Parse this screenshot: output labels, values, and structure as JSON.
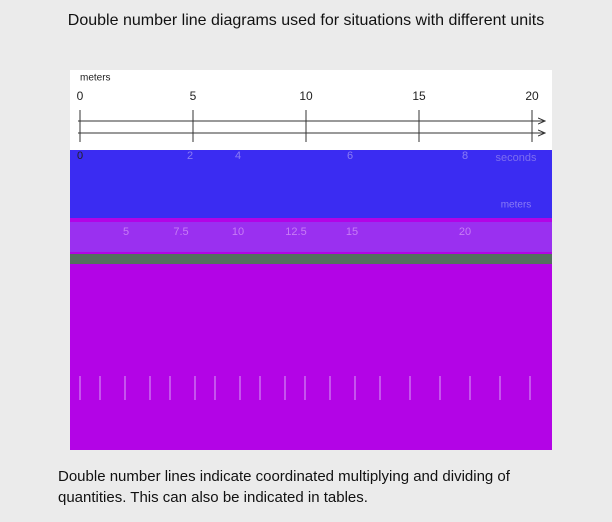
{
  "header": {
    "title": "Double number line diagrams used for situations with different units"
  },
  "diagram": {
    "top_line": {
      "unit": "meters",
      "ticks": [
        0,
        5,
        10,
        15,
        20
      ]
    },
    "bottom_line": {
      "unit": "seconds",
      "ticks": [
        0,
        2,
        4,
        6,
        8
      ]
    },
    "lower_line": {
      "unit": "meters",
      "ticks": [
        5,
        7.5,
        10,
        12.5,
        15,
        20
      ]
    }
  },
  "caption": "Double number lines indicate coordinated multiplying and dividing of quantities. This can also be indicated in tables."
}
